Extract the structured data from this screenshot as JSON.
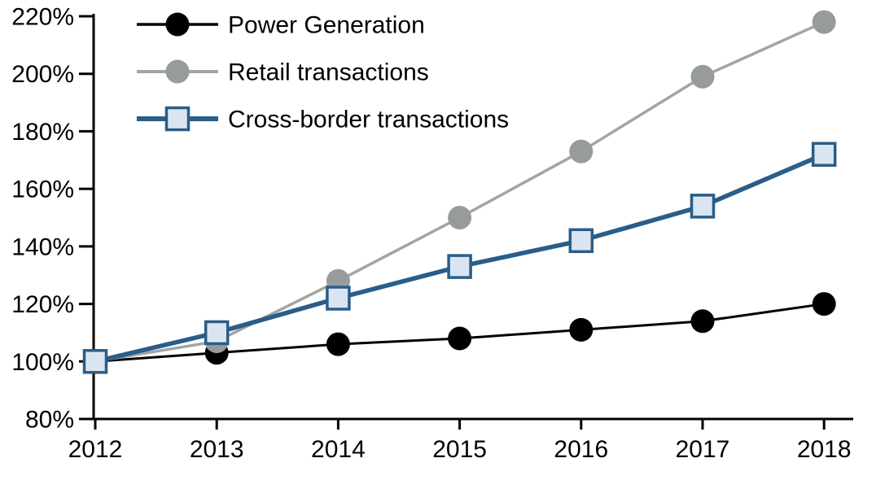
{
  "chart_data": {
    "type": "line",
    "title": "",
    "xlabel": "",
    "ylabel": "",
    "x": [
      2012,
      2013,
      2014,
      2015,
      2016,
      2017,
      2018
    ],
    "xticklabels": [
      "2012",
      "2013",
      "2014",
      "2015",
      "2016",
      "2017",
      "2018"
    ],
    "ylim": [
      80,
      220
    ],
    "ytick_step": 20,
    "yticklabels": [
      "80%",
      "100%",
      "120%",
      "140%",
      "160%",
      "180%",
      "200%",
      "220%"
    ],
    "grid": false,
    "legend_position": "top-left",
    "axis_color": "#000000",
    "series": [
      {
        "name": "Power Generation",
        "values": [
          100,
          103,
          106,
          108,
          111,
          114,
          120
        ],
        "line_color": "#000000",
        "line_width": 3,
        "marker": "circle",
        "marker_fill": "#000000",
        "marker_stroke": "none",
        "marker_size": 14.5
      },
      {
        "name": "Retail transactions",
        "values": [
          100,
          107,
          128,
          150,
          173,
          199,
          218
        ],
        "line_color": "#a3a4a4",
        "line_width": 3.5,
        "marker": "circle",
        "marker_fill": "#989b9b",
        "marker_stroke": "none",
        "marker_size": 14.5
      },
      {
        "name": "Cross-border transactions",
        "values": [
          100,
          110,
          122,
          133,
          142,
          154,
          172
        ],
        "line_color": "#2a5d88",
        "line_width": 5.5,
        "marker": "square",
        "marker_fill": "#dbe5f1",
        "marker_stroke": "#2a5d88",
        "marker_size": 13.5
      }
    ]
  }
}
